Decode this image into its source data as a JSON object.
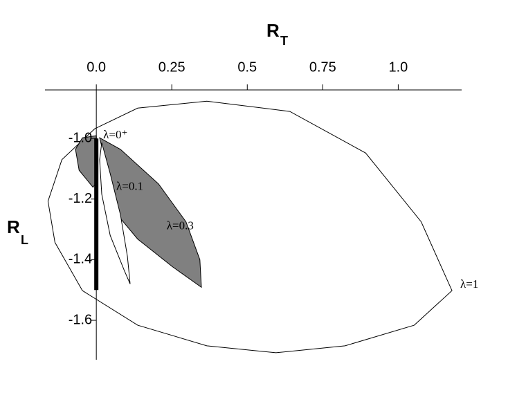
{
  "chart_data": {
    "type": "polygon",
    "xlabel": {
      "main": "R",
      "sub": "T"
    },
    "ylabel": {
      "main": "R",
      "sub": "L"
    },
    "xlim": [
      -0.17,
      1.21
    ],
    "ylim": [
      -1.73,
      -0.84
    ],
    "xticks": [
      {
        "value": 0,
        "label": "0.0"
      },
      0.25,
      0.5,
      0.75,
      {
        "value": 1,
        "label": "1.0"
      }
    ],
    "yticks": [
      {
        "value": -1,
        "label": "-1.0"
      },
      -1.2,
      -1.4,
      -1.6
    ],
    "series": [
      {
        "name": "λ=1",
        "color": "#ffffff",
        "x": [
          -0.005,
          0.137,
          0.366,
          0.641,
          0.892,
          1.076,
          1.178,
          1.053,
          0.824,
          0.595,
          0.366,
          0.137,
          -0.046,
          -0.137,
          -0.16,
          -0.114
        ],
        "y": [
          -0.968,
          -0.9,
          -0.877,
          -0.911,
          -1.048,
          -1.275,
          -1.502,
          -1.616,
          -1.684,
          -1.707,
          -1.684,
          -1.616,
          -1.502,
          -1.343,
          -1.207,
          -1.07
        ]
      },
      {
        "name": "λ=0.3",
        "color": "#808080",
        "x": [
          0.011,
          0.08,
          0.206,
          0.297,
          0.343,
          0.348,
          0.252,
          0.137,
          0.08,
          0.057,
          0.023
        ],
        "y": [
          -0.998,
          -1.036,
          -1.15,
          -1.275,
          -1.4,
          -1.491,
          -1.423,
          -1.332,
          -1.264,
          -1.161,
          -1.048
        ]
      },
      {
        "name": "λ=0.1",
        "color": "#ffffff",
        "x": [
          0.018,
          0.046,
          0.08,
          0.103,
          0.112,
          0.092,
          0.046,
          0.018,
          0.011
        ],
        "y": [
          -1.014,
          -1.116,
          -1.252,
          -1.389,
          -1.48,
          -1.434,
          -1.32,
          -1.184,
          -1.07
        ]
      },
      {
        "name": "λ=0⁺",
        "color": "#808080",
        "x": [
          0,
          -0.046,
          -0.069,
          -0.057,
          -0.011,
          0.005
        ],
        "y": [
          -0.991,
          -0.998,
          -1.036,
          -1.105,
          -1.161,
          -1.139
        ]
      }
    ],
    "segment": {
      "x": [
        0,
        0
      ],
      "y": [
        -1.0,
        -1.5
      ],
      "color": "#000000"
    }
  }
}
